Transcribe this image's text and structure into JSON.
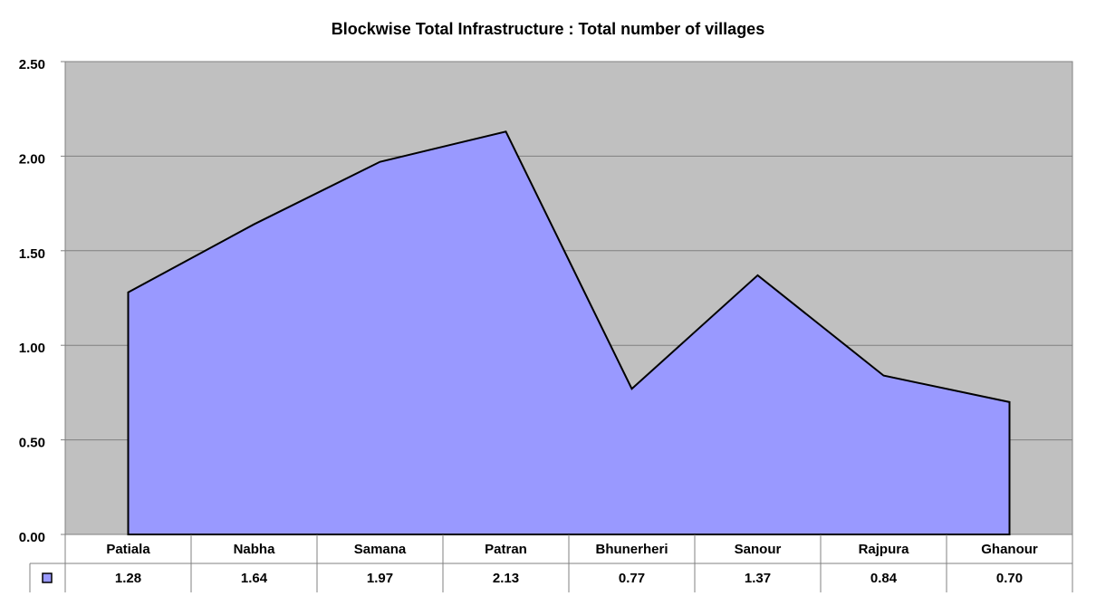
{
  "chart_data": {
    "type": "area",
    "title": "Blockwise Total Infrastructure :  Total number of villages",
    "categories": [
      "Patiala",
      "Nabha",
      "Samana",
      "Patran",
      "Bhunerheri",
      "Sanour",
      "Rajpura",
      "Ghanour"
    ],
    "values": [
      1.28,
      1.64,
      1.97,
      2.13,
      0.77,
      1.37,
      0.84,
      0.7
    ],
    "value_labels": [
      "1.28",
      "1.64",
      "1.97",
      "2.13",
      "0.77",
      "1.37",
      "0.84",
      "0.70"
    ],
    "color": "#9999ff",
    "ylim": [
      0,
      2.5
    ],
    "yticks": [
      {
        "value": 0,
        "label": "0.00"
      },
      {
        "value": 0.5,
        "label": "0.50"
      },
      {
        "value": 1,
        "label": "1.00"
      },
      {
        "value": 1.5,
        "label": "1.50"
      },
      {
        "value": 2,
        "label": "2.00"
      },
      {
        "value": 2.5,
        "label": "2.50"
      }
    ],
    "grid": true,
    "data_table": true
  }
}
